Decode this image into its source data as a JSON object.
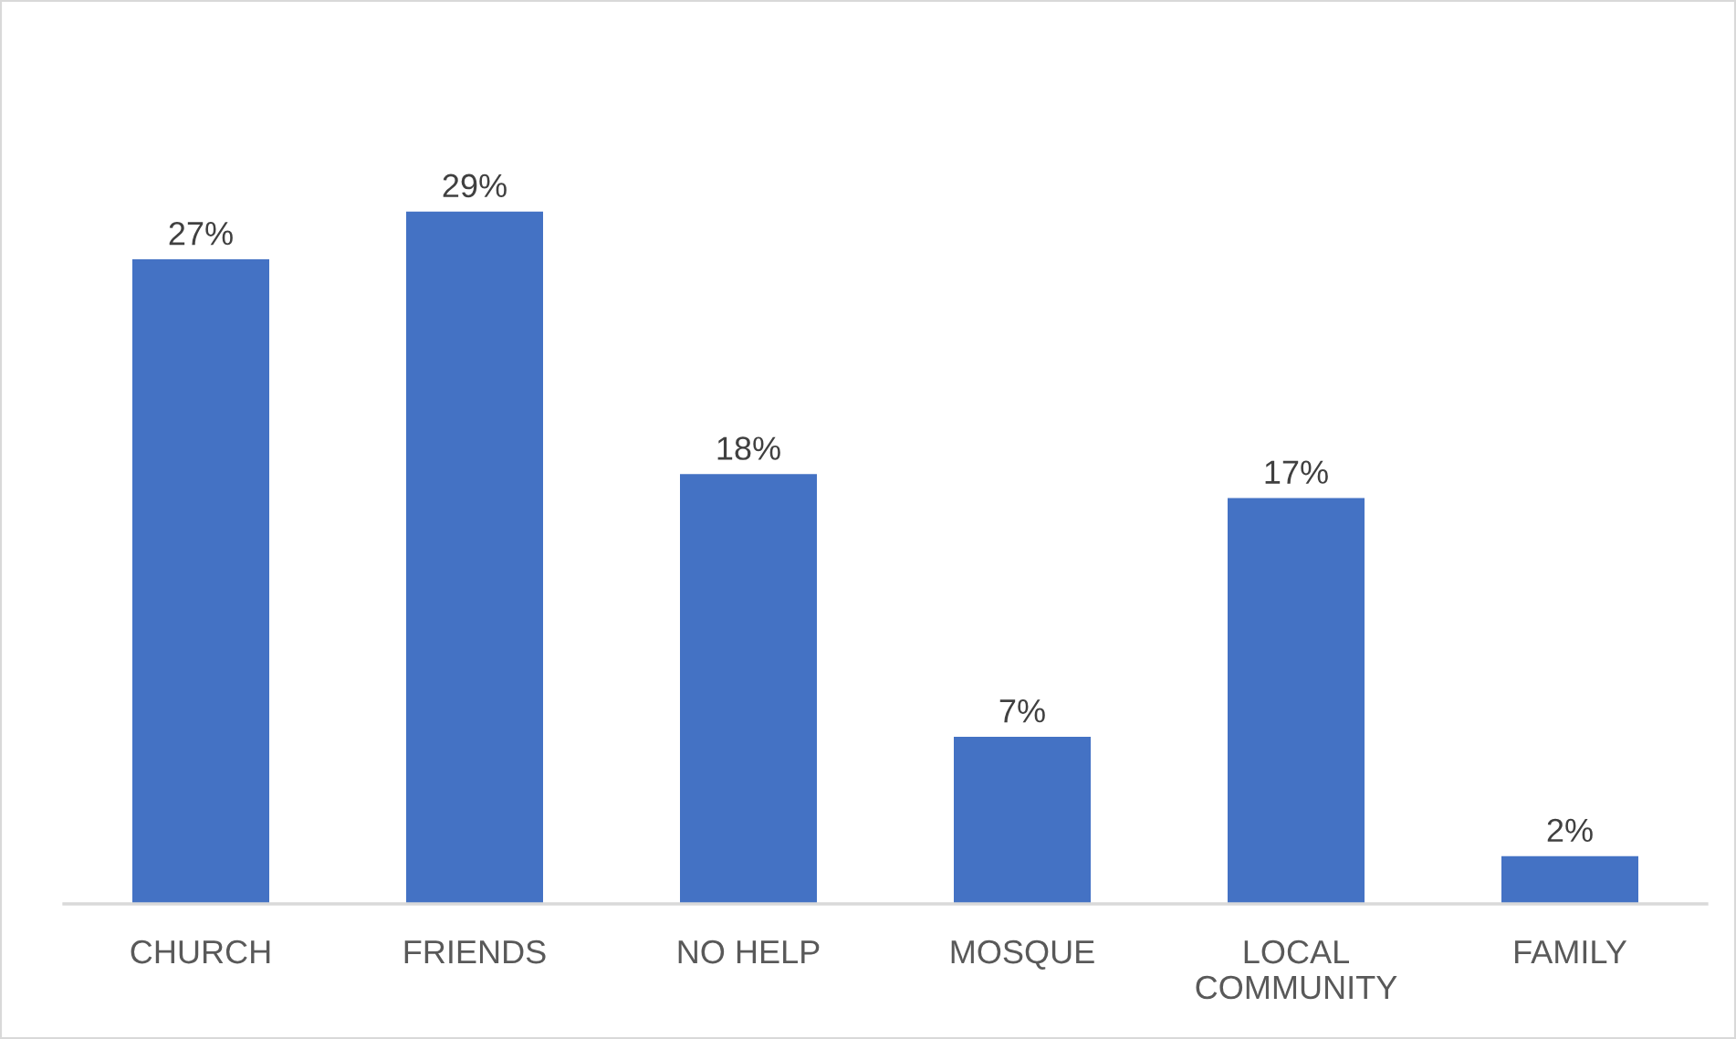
{
  "chart_data": {
    "type": "bar",
    "categories": [
      "CHURCH",
      "FRIENDS",
      "NO HELP",
      "MOSQUE",
      "LOCAL COMMUNITY",
      "FAMILY"
    ],
    "values": [
      27,
      29,
      18,
      7,
      17,
      2
    ],
    "color": "#4472c4",
    "value_labels": [
      "27%",
      "29%",
      "18%",
      "7%",
      "17%",
      "2%"
    ],
    "tick_labels": "x"
  }
}
